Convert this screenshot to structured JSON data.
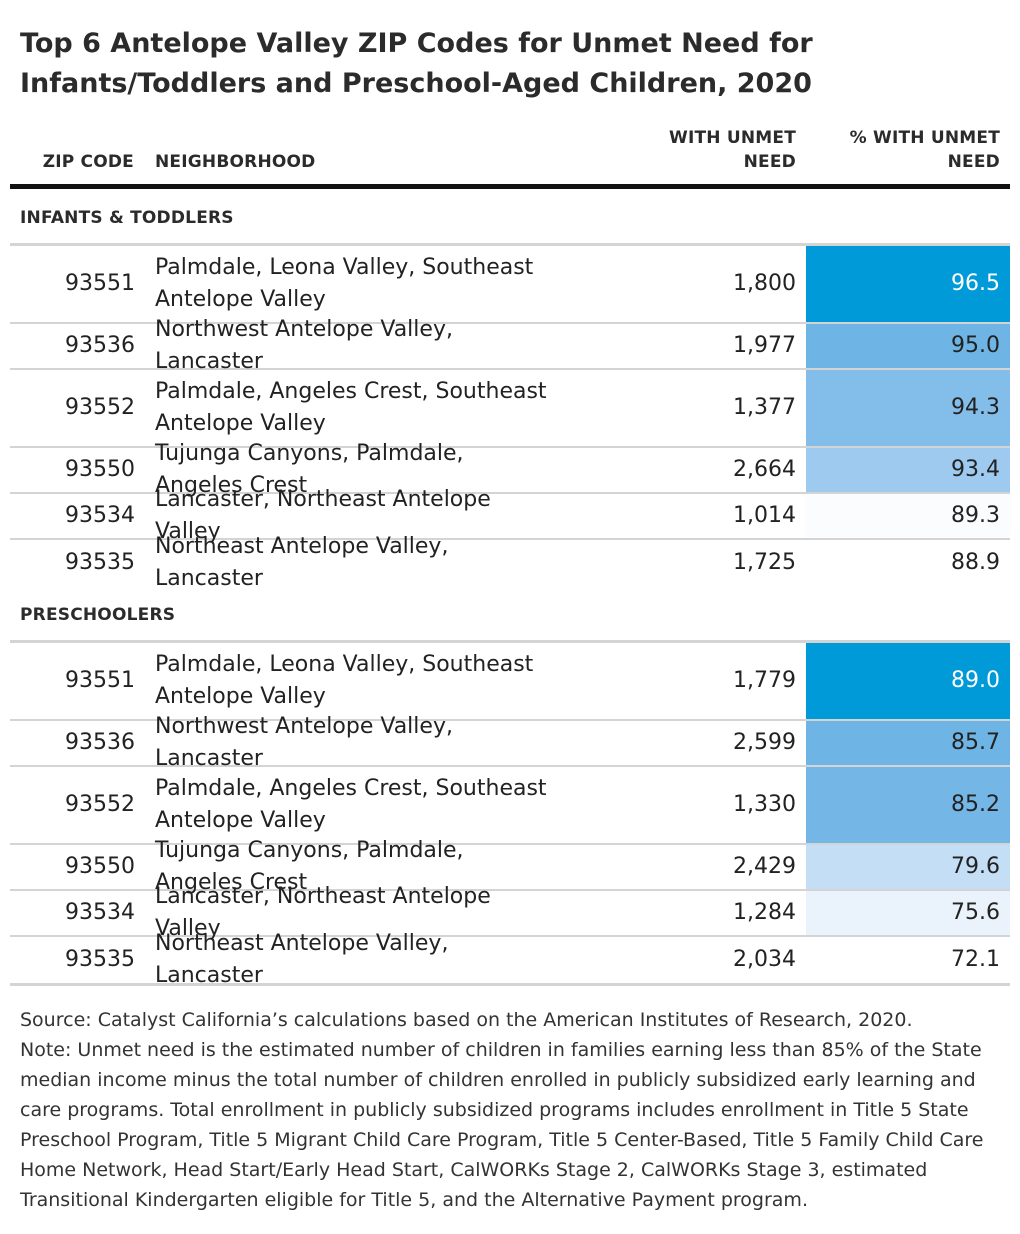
{
  "title": "Top 6 Antelope Valley ZIP Codes for Unmet Need for Infants/Toddlers and Preschool-Aged Children, 2020",
  "columns": {
    "zip": "ZIP CODE",
    "neighborhood": "NEIGHBORHOOD",
    "with_unmet_line1": "WITH UNMET",
    "with_unmet_line2": "NEED",
    "pct_unmet_line1": "% WITH UNMET",
    "pct_unmet_line2": "NEED"
  },
  "colors": {
    "scale_max": "#009ad9",
    "scale_mid": "#63b0e3",
    "scale_low": "#9dc9ef",
    "scale_min": "#ffffff",
    "rule": "#d4d4d4",
    "header_rule": "#111111"
  },
  "chart_data": {
    "type": "table",
    "sections": [
      {
        "label": "INFANTS & TODDLERS",
        "rows": [
          {
            "zip": "93551",
            "neighborhood": "Palmdale, Leona Valley, Southeast Antelope Valley",
            "with_unmet": "1,800",
            "pct": 96.5,
            "pct_label": "96.5"
          },
          {
            "zip": "93536",
            "neighborhood": "Northwest Antelope Valley, Lancaster",
            "with_unmet": "1,977",
            "pct": 95.0,
            "pct_label": "95.0"
          },
          {
            "zip": "93552",
            "neighborhood": "Palmdale, Angeles Crest, Southeast Antelope Valley",
            "with_unmet": "1,377",
            "pct": 94.3,
            "pct_label": "94.3"
          },
          {
            "zip": "93550",
            "neighborhood": "Tujunga Canyons, Palmdale, Angeles Crest",
            "with_unmet": "2,664",
            "pct": 93.4,
            "pct_label": "93.4"
          },
          {
            "zip": "93534",
            "neighborhood": "Lancaster, Northeast Antelope Valley",
            "with_unmet": "1,014",
            "pct": 89.3,
            "pct_label": "89.3"
          },
          {
            "zip": "93535",
            "neighborhood": "Northeast Antelope Valley, Lancaster",
            "with_unmet": "1,725",
            "pct": 88.9,
            "pct_label": "88.9"
          }
        ]
      },
      {
        "label": "PRESCHOOLERS",
        "rows": [
          {
            "zip": "93551",
            "neighborhood": "Palmdale, Leona Valley, Southeast Antelope Valley",
            "with_unmet": "1,779",
            "pct": 89.0,
            "pct_label": "89.0"
          },
          {
            "zip": "93536",
            "neighborhood": "Northwest Antelope Valley, Lancaster",
            "with_unmet": "2,599",
            "pct": 85.7,
            "pct_label": "85.7"
          },
          {
            "zip": "93552",
            "neighborhood": "Palmdale, Angeles Crest, Southeast Antelope Valley",
            "with_unmet": "1,330",
            "pct": 85.2,
            "pct_label": "85.2"
          },
          {
            "zip": "93550",
            "neighborhood": "Tujunga Canyons, Palmdale, Angeles Crest",
            "with_unmet": "2,429",
            "pct": 79.6,
            "pct_label": "79.6"
          },
          {
            "zip": "93534",
            "neighborhood": "Lancaster, Northeast Antelope Valley",
            "with_unmet": "1,284",
            "pct": 75.6,
            "pct_label": "75.6"
          },
          {
            "zip": "93535",
            "neighborhood": "Northeast Antelope Valley, Lancaster",
            "with_unmet": "2,034",
            "pct": 72.1,
            "pct_label": "72.1"
          }
        ]
      }
    ]
  },
  "source": "Source: Catalyst California’s calculations based on the American Institutes of Research, 2020.",
  "note": "Note: Unmet need is the estimated number of children in families earning less than 85% of the State median income minus the total number of children enrolled in publicly subsidized early learning and care programs. Total enrollment in publicly subsidized programs includes enrollment in Title 5 State Preschool Program, Title 5 Migrant Child Care Program, Title 5 Center-Based, Title 5 Family Child Care Home Network, Head Start/Early Head Start, CalWORKs Stage 2, CalWORKs Stage 3, estimated Transitional Kindergarten eligible for Title 5, and the Alternative Payment program."
}
